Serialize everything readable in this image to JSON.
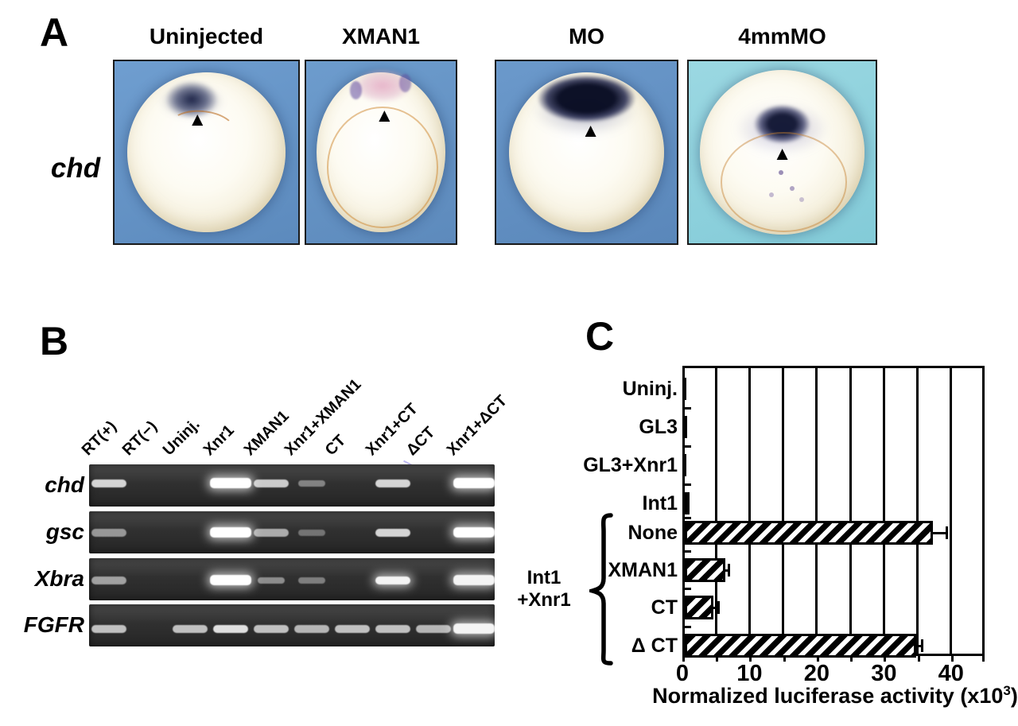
{
  "icons": {
    "arrowhead": "▲"
  },
  "colors": {
    "ink": "#000000",
    "photo_background_blue": "#6495c8",
    "photo_background_cyan": "#8ed1dd",
    "gel_background": "#333333"
  },
  "panel_a": {
    "label": "A",
    "row_label": "chd",
    "images": [
      {
        "title": "Uninjected"
      },
      {
        "title": "XMAN1"
      },
      {
        "title": "MO"
      },
      {
        "title": "4mmMO"
      }
    ]
  },
  "panel_b": {
    "label": "B",
    "lanes": [
      "RT(+)",
      "RT(−)",
      "Uninj.",
      "Xnr1",
      "XMAN1",
      "Xnr1+XMAN1",
      "CT",
      "Xnr1+CT",
      "ΔCT",
      "Xnr1+ΔCT"
    ],
    "rows": [
      {
        "gene": "chd",
        "bands": [
          {
            "lane": 0,
            "intensity": 0.8,
            "size": "m"
          },
          {
            "lane": 3,
            "intensity": 1,
            "size": "l"
          },
          {
            "lane": 4,
            "intensity": 0.75,
            "size": "m"
          },
          {
            "lane": 5,
            "intensity": 0.4,
            "size": "s"
          },
          {
            "lane": 7,
            "intensity": 0.8,
            "size": "m"
          },
          {
            "lane": 9,
            "intensity": 1,
            "size": "l"
          }
        ]
      },
      {
        "gene": "gsc",
        "bands": [
          {
            "lane": 0,
            "intensity": 0.5,
            "size": "m"
          },
          {
            "lane": 3,
            "intensity": 1,
            "size": "l"
          },
          {
            "lane": 4,
            "intensity": 0.6,
            "size": "m"
          },
          {
            "lane": 5,
            "intensity": 0.33,
            "size": "s"
          },
          {
            "lane": 7,
            "intensity": 0.8,
            "size": "m"
          },
          {
            "lane": 9,
            "intensity": 1,
            "size": "l"
          }
        ]
      },
      {
        "gene": "Xbra",
        "bands": [
          {
            "lane": 0,
            "intensity": 0.55,
            "size": "m"
          },
          {
            "lane": 3,
            "intensity": 1,
            "size": "l"
          },
          {
            "lane": 4,
            "intensity": 0.45,
            "size": "s"
          },
          {
            "lane": 5,
            "intensity": 0.38,
            "size": "s"
          },
          {
            "lane": 7,
            "intensity": 0.95,
            "size": "m"
          },
          {
            "lane": 9,
            "intensity": 0.95,
            "size": "l"
          }
        ]
      },
      {
        "gene": "FGFR",
        "bands": [
          {
            "lane": 0,
            "intensity": 0.7,
            "size": "m"
          },
          {
            "lane": 2,
            "intensity": 0.7,
            "size": "m"
          },
          {
            "lane": 3,
            "intensity": 0.85,
            "size": "m"
          },
          {
            "lane": 4,
            "intensity": 0.7,
            "size": "m"
          },
          {
            "lane": 5,
            "intensity": 0.65,
            "size": "m"
          },
          {
            "lane": 6,
            "intensity": 0.7,
            "size": "m"
          },
          {
            "lane": 7,
            "intensity": 0.7,
            "size": "m"
          },
          {
            "lane": 8,
            "intensity": 0.65,
            "size": "m"
          },
          {
            "lane": 9,
            "intensity": 0.95,
            "size": "l"
          }
        ]
      }
    ]
  },
  "panel_c": {
    "label": "C"
  },
  "chart_data": {
    "type": "bar",
    "orientation": "horizontal",
    "categories": [
      "Uninj.",
      "GL3",
      "GL3+Xnr1",
      "Int1",
      "None",
      "XMAN1",
      "CT",
      "Δ CT"
    ],
    "values": [
      0.2,
      0.4,
      0.2,
      0.7,
      37,
      6,
      4.3,
      34.5
    ],
    "errors": [
      0,
      0,
      0,
      0,
      2,
      0.6,
      0.7,
      0.9
    ],
    "xticks": [
      0,
      10,
      20,
      30,
      40
    ],
    "xlim": [
      0,
      45
    ],
    "grid_interval": 5,
    "grid": true,
    "legend_position": "none",
    "bar_fill": "diagonal-hatch",
    "xlabel_main": "Normalized luciferase activity (x10",
    "xlabel_sup": "3",
    "xlabel_close": ")",
    "bracket": {
      "label_lines": [
        "Int1",
        "+Xnr1"
      ],
      "from_category": "None",
      "to_category": "Δ CT"
    }
  }
}
